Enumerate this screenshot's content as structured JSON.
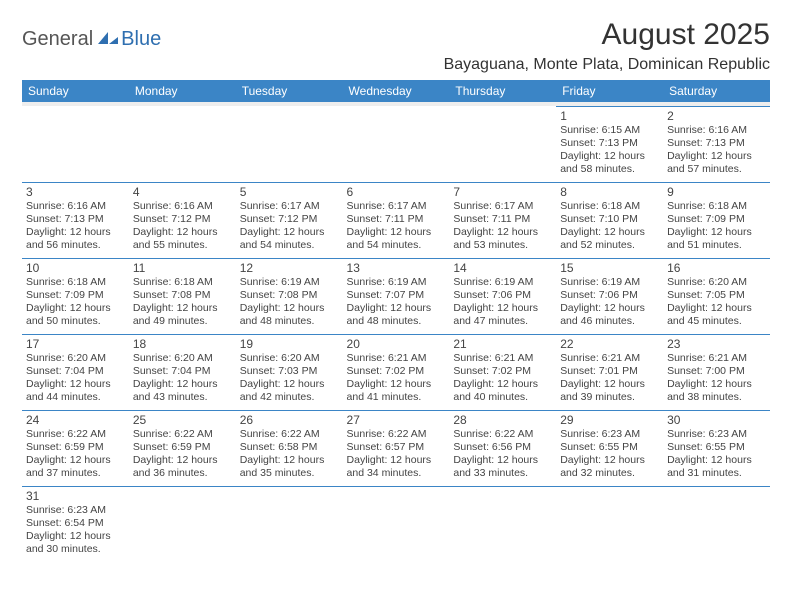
{
  "logo": {
    "text1": "General",
    "text2": "Blue"
  },
  "title": "August 2025",
  "location": "Bayaguana, Monte Plata, Dominican Republic",
  "colors": {
    "header_bg": "#3b85c6",
    "header_fg": "#ffffff",
    "rule": "#3b85c6",
    "blank_bg": "#eeeeee",
    "text": "#444444",
    "logo_blue": "#2f6fb0"
  },
  "weekdays": [
    "Sunday",
    "Monday",
    "Tuesday",
    "Wednesday",
    "Thursday",
    "Friday",
    "Saturday"
  ],
  "rows": [
    [
      null,
      null,
      null,
      null,
      null,
      {
        "n": "1",
        "sr": "Sunrise: 6:15 AM",
        "ss": "Sunset: 7:13 PM",
        "d1": "Daylight: 12 hours",
        "d2": "and 58 minutes."
      },
      {
        "n": "2",
        "sr": "Sunrise: 6:16 AM",
        "ss": "Sunset: 7:13 PM",
        "d1": "Daylight: 12 hours",
        "d2": "and 57 minutes."
      }
    ],
    [
      {
        "n": "3",
        "sr": "Sunrise: 6:16 AM",
        "ss": "Sunset: 7:13 PM",
        "d1": "Daylight: 12 hours",
        "d2": "and 56 minutes."
      },
      {
        "n": "4",
        "sr": "Sunrise: 6:16 AM",
        "ss": "Sunset: 7:12 PM",
        "d1": "Daylight: 12 hours",
        "d2": "and 55 minutes."
      },
      {
        "n": "5",
        "sr": "Sunrise: 6:17 AM",
        "ss": "Sunset: 7:12 PM",
        "d1": "Daylight: 12 hours",
        "d2": "and 54 minutes."
      },
      {
        "n": "6",
        "sr": "Sunrise: 6:17 AM",
        "ss": "Sunset: 7:11 PM",
        "d1": "Daylight: 12 hours",
        "d2": "and 54 minutes."
      },
      {
        "n": "7",
        "sr": "Sunrise: 6:17 AM",
        "ss": "Sunset: 7:11 PM",
        "d1": "Daylight: 12 hours",
        "d2": "and 53 minutes."
      },
      {
        "n": "8",
        "sr": "Sunrise: 6:18 AM",
        "ss": "Sunset: 7:10 PM",
        "d1": "Daylight: 12 hours",
        "d2": "and 52 minutes."
      },
      {
        "n": "9",
        "sr": "Sunrise: 6:18 AM",
        "ss": "Sunset: 7:09 PM",
        "d1": "Daylight: 12 hours",
        "d2": "and 51 minutes."
      }
    ],
    [
      {
        "n": "10",
        "sr": "Sunrise: 6:18 AM",
        "ss": "Sunset: 7:09 PM",
        "d1": "Daylight: 12 hours",
        "d2": "and 50 minutes."
      },
      {
        "n": "11",
        "sr": "Sunrise: 6:18 AM",
        "ss": "Sunset: 7:08 PM",
        "d1": "Daylight: 12 hours",
        "d2": "and 49 minutes."
      },
      {
        "n": "12",
        "sr": "Sunrise: 6:19 AM",
        "ss": "Sunset: 7:08 PM",
        "d1": "Daylight: 12 hours",
        "d2": "and 48 minutes."
      },
      {
        "n": "13",
        "sr": "Sunrise: 6:19 AM",
        "ss": "Sunset: 7:07 PM",
        "d1": "Daylight: 12 hours",
        "d2": "and 48 minutes."
      },
      {
        "n": "14",
        "sr": "Sunrise: 6:19 AM",
        "ss": "Sunset: 7:06 PM",
        "d1": "Daylight: 12 hours",
        "d2": "and 47 minutes."
      },
      {
        "n": "15",
        "sr": "Sunrise: 6:19 AM",
        "ss": "Sunset: 7:06 PM",
        "d1": "Daylight: 12 hours",
        "d2": "and 46 minutes."
      },
      {
        "n": "16",
        "sr": "Sunrise: 6:20 AM",
        "ss": "Sunset: 7:05 PM",
        "d1": "Daylight: 12 hours",
        "d2": "and 45 minutes."
      }
    ],
    [
      {
        "n": "17",
        "sr": "Sunrise: 6:20 AM",
        "ss": "Sunset: 7:04 PM",
        "d1": "Daylight: 12 hours",
        "d2": "and 44 minutes."
      },
      {
        "n": "18",
        "sr": "Sunrise: 6:20 AM",
        "ss": "Sunset: 7:04 PM",
        "d1": "Daylight: 12 hours",
        "d2": "and 43 minutes."
      },
      {
        "n": "19",
        "sr": "Sunrise: 6:20 AM",
        "ss": "Sunset: 7:03 PM",
        "d1": "Daylight: 12 hours",
        "d2": "and 42 minutes."
      },
      {
        "n": "20",
        "sr": "Sunrise: 6:21 AM",
        "ss": "Sunset: 7:02 PM",
        "d1": "Daylight: 12 hours",
        "d2": "and 41 minutes."
      },
      {
        "n": "21",
        "sr": "Sunrise: 6:21 AM",
        "ss": "Sunset: 7:02 PM",
        "d1": "Daylight: 12 hours",
        "d2": "and 40 minutes."
      },
      {
        "n": "22",
        "sr": "Sunrise: 6:21 AM",
        "ss": "Sunset: 7:01 PM",
        "d1": "Daylight: 12 hours",
        "d2": "and 39 minutes."
      },
      {
        "n": "23",
        "sr": "Sunrise: 6:21 AM",
        "ss": "Sunset: 7:00 PM",
        "d1": "Daylight: 12 hours",
        "d2": "and 38 minutes."
      }
    ],
    [
      {
        "n": "24",
        "sr": "Sunrise: 6:22 AM",
        "ss": "Sunset: 6:59 PM",
        "d1": "Daylight: 12 hours",
        "d2": "and 37 minutes."
      },
      {
        "n": "25",
        "sr": "Sunrise: 6:22 AM",
        "ss": "Sunset: 6:59 PM",
        "d1": "Daylight: 12 hours",
        "d2": "and 36 minutes."
      },
      {
        "n": "26",
        "sr": "Sunrise: 6:22 AM",
        "ss": "Sunset: 6:58 PM",
        "d1": "Daylight: 12 hours",
        "d2": "and 35 minutes."
      },
      {
        "n": "27",
        "sr": "Sunrise: 6:22 AM",
        "ss": "Sunset: 6:57 PM",
        "d1": "Daylight: 12 hours",
        "d2": "and 34 minutes."
      },
      {
        "n": "28",
        "sr": "Sunrise: 6:22 AM",
        "ss": "Sunset: 6:56 PM",
        "d1": "Daylight: 12 hours",
        "d2": "and 33 minutes."
      },
      {
        "n": "29",
        "sr": "Sunrise: 6:23 AM",
        "ss": "Sunset: 6:55 PM",
        "d1": "Daylight: 12 hours",
        "d2": "and 32 minutes."
      },
      {
        "n": "30",
        "sr": "Sunrise: 6:23 AM",
        "ss": "Sunset: 6:55 PM",
        "d1": "Daylight: 12 hours",
        "d2": "and 31 minutes."
      }
    ],
    [
      {
        "n": "31",
        "sr": "Sunrise: 6:23 AM",
        "ss": "Sunset: 6:54 PM",
        "d1": "Daylight: 12 hours",
        "d2": "and 30 minutes."
      },
      null,
      null,
      null,
      null,
      null,
      null
    ]
  ]
}
